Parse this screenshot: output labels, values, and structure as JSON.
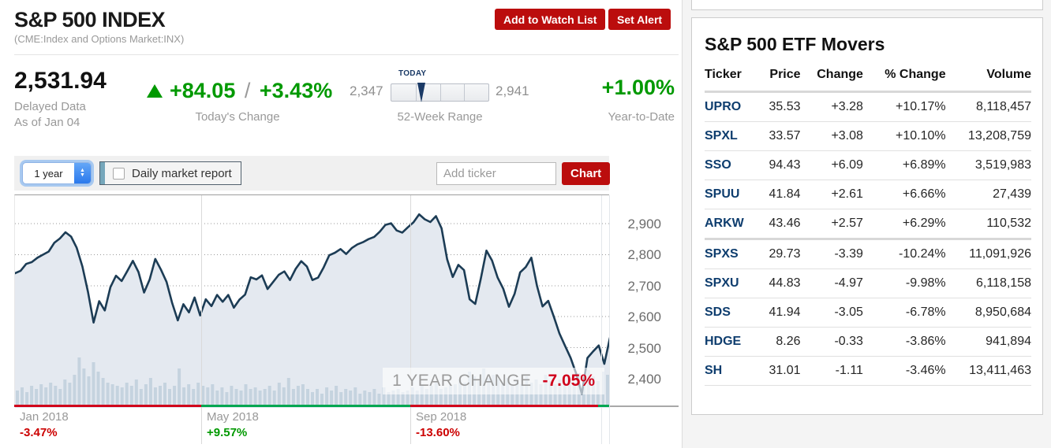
{
  "header": {
    "title": "S&P 500 INDEX",
    "subtitle": "(CME:Index and Options Market:INX)",
    "watchlist_button": "Add to Watch List",
    "set_alert_button": "Set Alert"
  },
  "quote": {
    "price": "2,531.94",
    "delayed_line1": "Delayed Data",
    "delayed_line2": "As of Jan 04",
    "change_value": "+84.05",
    "change_sep": "/",
    "change_percent": "+3.43%",
    "change_label": "Today's Change",
    "range_low": "2,347",
    "range_high": "2,941",
    "range_today_label": "TODAY",
    "range_label": "52-Week Range",
    "ytd_value": "+1.00%",
    "ytd_label": "Year-to-Date"
  },
  "toolbar": {
    "range_select_value": "1 year",
    "report_checkbox_label": "Daily market report",
    "report_checkbox_checked": false,
    "ticker_input_placeholder": "Add ticker",
    "chart_button": "Chart"
  },
  "chart_data": {
    "type": "area",
    "title": "S&P 500 Index, 1 year",
    "ylim": [
      2300,
      3015
    ],
    "y_ticks": [
      2900,
      2800,
      2700,
      2600,
      2500,
      2400
    ],
    "grid": "dotted-horizontal",
    "legend_position": "none",
    "series": [
      {
        "name": "S&P 500 Index",
        "values": [
          2740,
          2748,
          2770,
          2776,
          2790,
          2800,
          2810,
          2838,
          2852,
          2872,
          2858,
          2822,
          2762,
          2680,
          2581,
          2650,
          2620,
          2695,
          2732,
          2715,
          2747,
          2780,
          2744,
          2678,
          2720,
          2786,
          2752,
          2712,
          2644,
          2588,
          2640,
          2614,
          2662,
          2604,
          2656,
          2634,
          2670,
          2648,
          2670,
          2629,
          2655,
          2671,
          2727,
          2720,
          2733,
          2689,
          2712,
          2735,
          2746,
          2718,
          2754,
          2779,
          2762,
          2718,
          2726,
          2759,
          2798,
          2806,
          2818,
          2802,
          2821,
          2833,
          2840,
          2850,
          2857,
          2874,
          2896,
          2901,
          2878,
          2871,
          2888,
          2904,
          2930,
          2914,
          2905,
          2924,
          2885,
          2785,
          2728,
          2767,
          2750,
          2656,
          2641,
          2723,
          2813,
          2781,
          2726,
          2690,
          2632,
          2673,
          2743,
          2760,
          2790,
          2700,
          2633,
          2651,
          2600,
          2546,
          2506,
          2467,
          2416,
          2351,
          2467,
          2488,
          2507,
          2448,
          2532
        ]
      }
    ],
    "volume_bars": [
      20,
      24,
      18,
      26,
      22,
      28,
      24,
      30,
      26,
      22,
      34,
      30,
      40,
      62,
      48,
      38,
      56,
      44,
      36,
      30,
      28,
      26,
      24,
      30,
      26,
      34,
      22,
      28,
      36,
      24,
      26,
      30,
      22,
      26,
      48,
      24,
      28,
      22,
      30,
      26,
      24,
      28,
      20,
      24,
      18,
      26,
      22,
      20,
      28,
      22,
      24,
      20,
      22,
      26,
      20,
      30,
      24,
      36,
      22,
      26,
      28,
      22,
      18,
      22,
      16,
      24,
      20,
      26,
      18,
      22,
      20,
      24,
      16,
      20,
      18,
      22,
      16,
      24,
      18,
      20,
      22,
      18,
      20,
      24,
      20,
      28,
      22,
      26,
      30,
      22,
      24,
      26,
      28,
      34,
      30,
      44,
      38,
      32,
      48,
      36,
      40,
      34,
      30,
      36,
      26,
      32,
      28,
      38,
      30,
      34,
      28,
      40,
      32,
      28,
      34,
      30,
      36,
      30,
      42,
      34,
      46,
      38,
      32,
      44,
      40
    ],
    "x_labels": [
      {
        "label": "Jan 2018",
        "change": "-3.47%",
        "positive": false,
        "frac": 0.0
      },
      {
        "label": "May 2018",
        "change": "+9.57%",
        "positive": true,
        "frac": 0.3143
      },
      {
        "label": "Sep 2018",
        "change": "-13.60%",
        "positive": false,
        "frac": 0.6658
      }
    ],
    "baseline_segments": [
      {
        "from": 0.0,
        "to": 0.3143,
        "positive": false
      },
      {
        "from": 0.3143,
        "to": 0.6658,
        "positive": true
      },
      {
        "from": 0.6658,
        "to": 0.9814,
        "positive": false
      },
      {
        "from": 0.9814,
        "to": 1.0,
        "positive": true
      }
    ],
    "annotation": {
      "text": "1 YEAR CHANGE",
      "value": "-7.05%"
    }
  },
  "movers": {
    "title": "S&P 500 ETF Movers",
    "columns": [
      "Ticker",
      "Price",
      "Change",
      "% Change",
      "Volume"
    ],
    "rows": [
      {
        "ticker": "UPRO",
        "price": "35.53",
        "change": "+3.28",
        "pct": "+10.17%",
        "volume": "8,118,457",
        "positive": true,
        "group_end": false
      },
      {
        "ticker": "SPXL",
        "price": "33.57",
        "change": "+3.08",
        "pct": "+10.10%",
        "volume": "13,208,759",
        "positive": true,
        "group_end": false
      },
      {
        "ticker": "SSO",
        "price": "94.43",
        "change": "+6.09",
        "pct": "+6.89%",
        "volume": "3,519,983",
        "positive": true,
        "group_end": false
      },
      {
        "ticker": "SPUU",
        "price": "41.84",
        "change": "+2.61",
        "pct": "+6.66%",
        "volume": "27,439",
        "positive": true,
        "group_end": false
      },
      {
        "ticker": "ARKW",
        "price": "43.46",
        "change": "+2.57",
        "pct": "+6.29%",
        "volume": "110,532",
        "positive": true,
        "group_end": true
      },
      {
        "ticker": "SPXS",
        "price": "29.73",
        "change": "-3.39",
        "pct": "-10.24%",
        "volume": "11,091,926",
        "positive": false,
        "group_end": false
      },
      {
        "ticker": "SPXU",
        "price": "44.83",
        "change": "-4.97",
        "pct": "-9.98%",
        "volume": "6,118,158",
        "positive": false,
        "group_end": false
      },
      {
        "ticker": "SDS",
        "price": "41.94",
        "change": "-3.05",
        "pct": "-6.78%",
        "volume": "8,950,684",
        "positive": false,
        "group_end": false
      },
      {
        "ticker": "HDGE",
        "price": "8.26",
        "change": "-0.33",
        "pct": "-3.86%",
        "volume": "941,894",
        "positive": false,
        "group_end": false
      },
      {
        "ticker": "SH",
        "price": "31.01",
        "change": "-1.11",
        "pct": "-3.46%",
        "volume": "13,411,463",
        "positive": false,
        "group_end": false
      }
    ]
  },
  "colors": {
    "accent_red": "#bb0d0d",
    "pos": "#009900",
    "neg": "#cc0000",
    "baseline_pos": "#00a651",
    "baseline_neg": "#d0021b",
    "line_navy": "#1c3c55",
    "area_fill": "#e4e9f0",
    "volume_fill": "#c5d3df",
    "ticker_navy": "#0e3d6e"
  }
}
